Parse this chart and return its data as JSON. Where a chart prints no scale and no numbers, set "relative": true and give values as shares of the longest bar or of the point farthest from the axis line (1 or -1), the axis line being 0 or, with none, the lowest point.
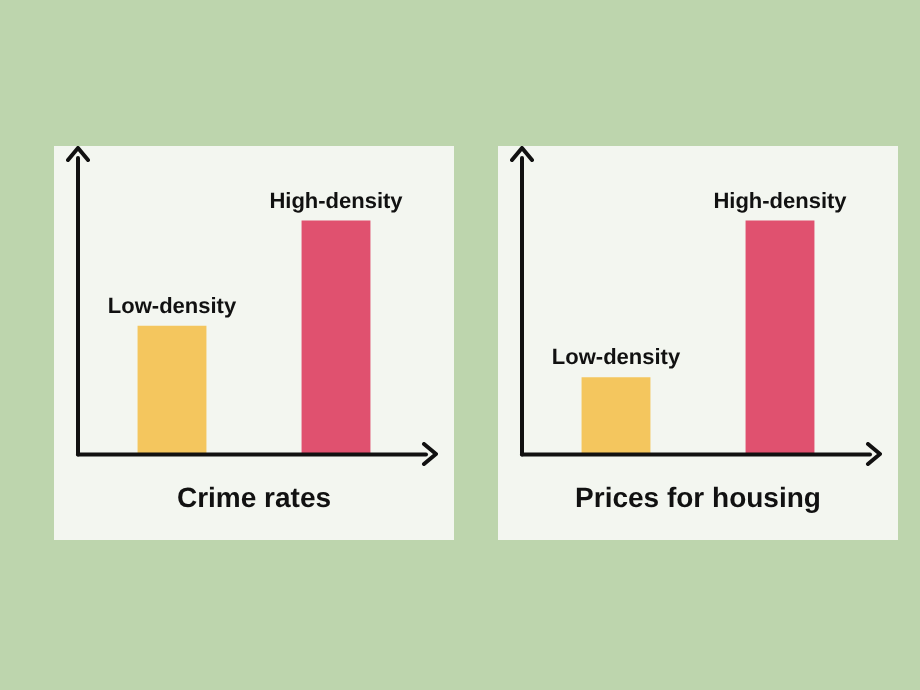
{
  "chart_data": [
    {
      "type": "bar",
      "relative": true,
      "xlabel": "Crime rates",
      "categories": [
        "Low-density",
        "High-density"
      ],
      "values": [
        0.55,
        1
      ],
      "colors": [
        "#f4c65e",
        "#e0516f"
      ]
    },
    {
      "type": "bar",
      "relative": true,
      "xlabel": "Prices for housing",
      "categories": [
        "Low-density",
        "High-density"
      ],
      "values": [
        0.33,
        1
      ],
      "colors": [
        "#f4c65e",
        "#e0516f"
      ]
    }
  ]
}
